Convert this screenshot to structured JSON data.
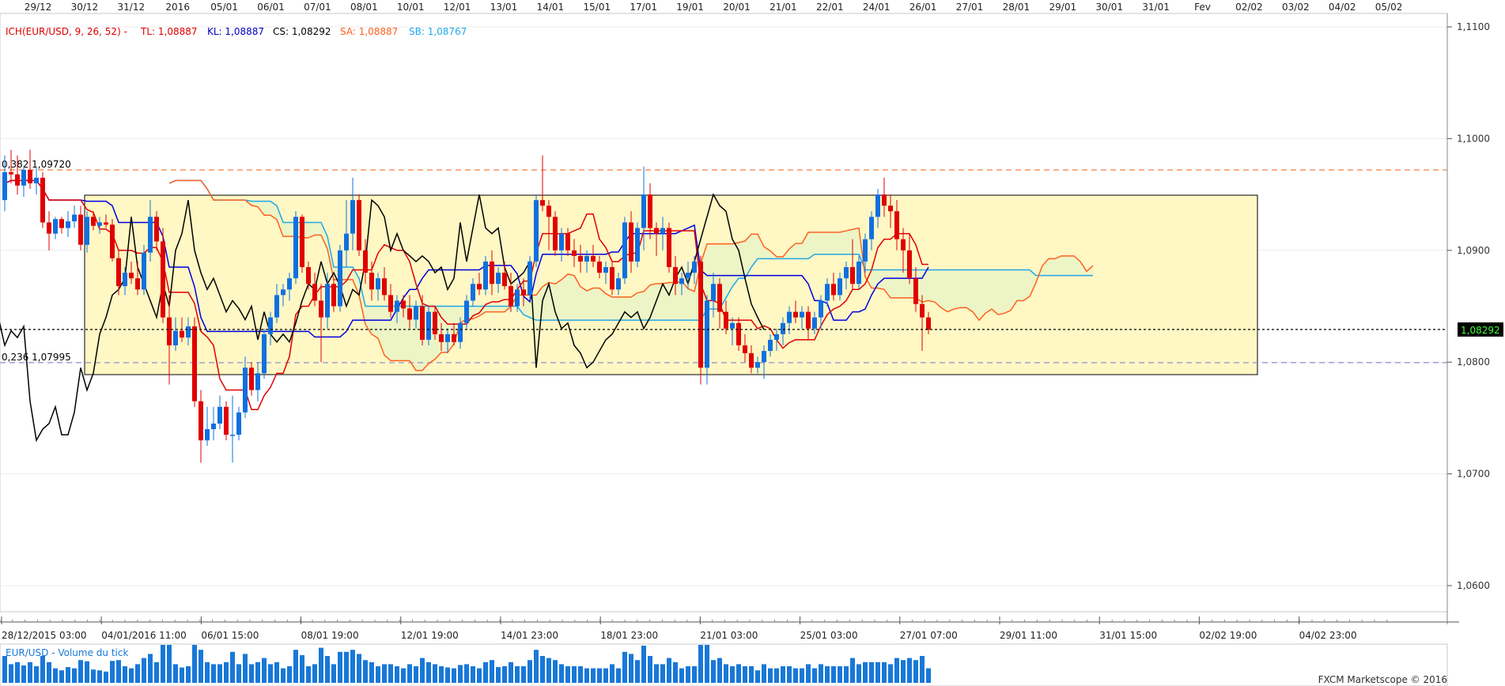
{
  "chart_data": {
    "type": "candlestick",
    "symbol": "EUR/USD",
    "indicator": {
      "legend_title": "ICH(EUR/USD, 9, 26, 52) -",
      "tl_label": "TL: 1,08887",
      "kl_label": "KL: 1,08887",
      "cs_label": "CS: 1,08292",
      "sa_label": "SA: 1,08887",
      "sb_label": "SB: 1,08767"
    },
    "current_price": "1,08292",
    "current_value": 1.08292,
    "ylim": [
      1.0555,
      1.1125
    ],
    "price_ticks": [
      {
        "label": "1,1100",
        "value": 1.11
      },
      {
        "label": "1,1000",
        "value": 1.1
      },
      {
        "label": "1,0900",
        "value": 1.09
      },
      {
        "label": "1,0800",
        "value": 1.08
      },
      {
        "label": "1,0700",
        "value": 1.07
      },
      {
        "label": "1,0600",
        "value": 1.06
      }
    ],
    "top_date_labels": [
      "29/12",
      "30/12",
      "31/12",
      "2016",
      "05/01",
      "06/01",
      "07/01",
      "08/01",
      "10/01",
      "12/01",
      "13/01",
      "14/01",
      "15/01",
      "17/01",
      "19/01",
      "20/01",
      "21/01",
      "22/01",
      "24/01",
      "26/01",
      "27/01",
      "28/01",
      "29/01",
      "30/01",
      "31/01",
      "Fev",
      "02/02",
      "03/02",
      "04/02",
      "05/02"
    ],
    "bottom_date_labels": [
      "28/12/2015 03:00",
      "04/01/2016 11:00",
      "06/01 15:00",
      "08/01 19:00",
      "12/01 19:00",
      "14/01 23:00",
      "18/01 23:00",
      "21/01 03:00",
      "25/01 03:00",
      "27/01 07:00",
      "29/01 11:00",
      "31/01 15:00",
      "02/02 19:00",
      "04/02 23:00"
    ],
    "fib_levels": [
      {
        "label": "0,382 1,09720",
        "value": 1.0972,
        "color": "#f08040"
      },
      {
        "label": "0,236 1,07995",
        "value": 1.07995,
        "color": "#9090d0"
      }
    ],
    "candles": [
      [
        1.0945,
        1.0985,
        1.0935,
        1.097
      ],
      [
        1.097,
        1.099,
        1.096,
        1.0968
      ],
      [
        1.0968,
        1.0985,
        1.095,
        1.0958
      ],
      [
        1.0958,
        1.0975,
        1.0948,
        1.0972
      ],
      [
        1.0972,
        1.099,
        1.0955,
        1.096
      ],
      [
        1.096,
        1.0975,
        1.095,
        1.0965
      ],
      [
        1.0965,
        1.097,
        1.092,
        1.0925
      ],
      [
        1.0925,
        1.0935,
        1.09,
        1.0915
      ],
      [
        1.0915,
        1.093,
        1.091,
        1.0928
      ],
      [
        1.0928,
        1.093,
        1.0915,
        1.092
      ],
      [
        1.092,
        1.0935,
        1.0912,
        1.0926
      ],
      [
        1.0926,
        1.094,
        1.092,
        1.0932
      ],
      [
        1.0932,
        1.094,
        1.09,
        1.0905
      ],
      [
        1.0905,
        1.0935,
        1.0898,
        1.093
      ],
      [
        1.093,
        1.0935,
        1.0918,
        1.0922
      ],
      [
        1.0922,
        1.093,
        1.0915,
        1.0925
      ],
      [
        1.0925,
        1.0932,
        1.092,
        1.0923
      ],
      [
        1.0923,
        1.0928,
        1.089,
        1.0893
      ],
      [
        1.0893,
        1.09,
        1.086,
        1.0868
      ],
      [
        1.0868,
        1.0885,
        1.086,
        1.088
      ],
      [
        1.088,
        1.089,
        1.087,
        1.0875
      ],
      [
        1.0875,
        1.089,
        1.086,
        1.0865
      ],
      [
        1.0865,
        1.0905,
        1.086,
        1.0898
      ],
      [
        1.0898,
        1.0945,
        1.089,
        1.093
      ],
      [
        1.093,
        1.0935,
        1.09,
        1.0908
      ],
      [
        1.0908,
        1.092,
        1.0835,
        1.084
      ],
      [
        1.084,
        1.086,
        1.078,
        1.0815
      ],
      [
        1.0815,
        1.084,
        1.081,
        1.0828
      ],
      [
        1.0828,
        1.084,
        1.0818,
        1.0822
      ],
      [
        1.0822,
        1.084,
        1.0815,
        1.0832
      ],
      [
        1.0832,
        1.084,
        1.076,
        1.0765
      ],
      [
        1.0765,
        1.0775,
        1.071,
        1.073
      ],
      [
        1.073,
        1.076,
        1.0725,
        1.074
      ],
      [
        1.074,
        1.076,
        1.073,
        1.0745
      ],
      [
        1.0745,
        1.077,
        1.074,
        1.076
      ],
      [
        1.076,
        1.0765,
        1.073,
        1.0735
      ],
      [
        1.0735,
        1.077,
        1.071,
        1.0735
      ],
      [
        1.0735,
        1.076,
        1.073,
        1.0755
      ],
      [
        1.0755,
        1.0805,
        1.075,
        1.0795
      ],
      [
        1.0795,
        1.08,
        1.077,
        1.0775
      ],
      [
        1.0775,
        1.08,
        1.0765,
        1.079
      ],
      [
        1.079,
        1.083,
        1.0785,
        1.0825
      ],
      [
        1.0825,
        1.0845,
        1.0815,
        1.084
      ],
      [
        1.084,
        1.087,
        1.0835,
        1.086
      ],
      [
        1.086,
        1.087,
        1.085,
        1.0865
      ],
      [
        1.0865,
        1.088,
        1.0855,
        1.0875
      ],
      [
        1.0875,
        1.0935,
        1.087,
        1.093
      ],
      [
        1.093,
        1.0932,
        1.088,
        1.0885
      ],
      [
        1.0885,
        1.089,
        1.0865,
        1.087
      ],
      [
        1.087,
        1.088,
        1.085,
        1.0855
      ],
      [
        1.0855,
        1.087,
        1.08,
        1.084
      ],
      [
        1.084,
        1.088,
        1.083,
        1.087
      ],
      [
        1.087,
        1.0875,
        1.0845,
        1.085
      ],
      [
        1.085,
        1.0905,
        1.0845,
        1.09
      ],
      [
        1.09,
        1.0945,
        1.0885,
        1.0915
      ],
      [
        1.0915,
        1.0965,
        1.09,
        1.0945
      ],
      [
        1.0945,
        1.095,
        1.0895,
        1.09
      ],
      [
        1.09,
        1.091,
        1.087,
        1.088
      ],
      [
        1.088,
        1.089,
        1.0855,
        1.0865
      ],
      [
        1.0865,
        1.088,
        1.0855,
        1.0875
      ],
      [
        1.0875,
        1.0885,
        1.0855,
        1.086
      ],
      [
        1.086,
        1.087,
        1.084,
        1.0845
      ],
      [
        1.0845,
        1.086,
        1.0835,
        1.0855
      ],
      [
        1.0855,
        1.086,
        1.084,
        1.0848
      ],
      [
        1.0848,
        1.086,
        1.083,
        1.0838
      ],
      [
        1.0838,
        1.0855,
        1.083,
        1.085
      ],
      [
        1.085,
        1.086,
        1.0815,
        1.082
      ],
      [
        1.082,
        1.085,
        1.0815,
        1.0845
      ],
      [
        1.0845,
        1.085,
        1.082,
        1.0825
      ],
      [
        1.0825,
        1.0835,
        1.081,
        1.0818
      ],
      [
        1.0818,
        1.083,
        1.0808,
        1.0825
      ],
      [
        1.0825,
        1.0835,
        1.0815,
        1.0818
      ],
      [
        1.0818,
        1.084,
        1.0812,
        1.0835
      ],
      [
        1.0835,
        1.086,
        1.083,
        1.0855
      ],
      [
        1.0855,
        1.0875,
        1.085,
        1.087
      ],
      [
        1.087,
        1.088,
        1.086,
        1.0865
      ],
      [
        1.0865,
        1.0895,
        1.086,
        1.089
      ],
      [
        1.089,
        1.09,
        1.086,
        1.087
      ],
      [
        1.087,
        1.0885,
        1.0862,
        1.088
      ],
      [
        1.088,
        1.089,
        1.0865,
        1.0868
      ],
      [
        1.0868,
        1.088,
        1.0845,
        1.085
      ],
      [
        1.085,
        1.087,
        1.0845,
        1.0865
      ],
      [
        1.0865,
        1.0875,
        1.085,
        1.086
      ],
      [
        1.086,
        1.0895,
        1.0855,
        1.089
      ],
      [
        1.089,
        1.095,
        1.0885,
        1.0945
      ],
      [
        1.0945,
        1.0985,
        1.0935,
        1.094
      ],
      [
        1.094,
        1.0945,
        1.09,
        1.093
      ],
      [
        1.093,
        1.0935,
        1.0895,
        1.09
      ],
      [
        1.09,
        1.092,
        1.089,
        1.0915
      ],
      [
        1.0915,
        1.092,
        1.0895,
        1.09
      ],
      [
        1.09,
        1.091,
        1.0885,
        1.0895
      ],
      [
        1.0895,
        1.0905,
        1.088,
        1.089
      ],
      [
        1.089,
        1.09,
        1.088,
        1.0895
      ],
      [
        1.0895,
        1.0905,
        1.0885,
        1.089
      ],
      [
        1.089,
        1.0895,
        1.0875,
        1.088
      ],
      [
        1.088,
        1.089,
        1.087,
        1.0885
      ],
      [
        1.0885,
        1.089,
        1.086,
        1.0865
      ],
      [
        1.0865,
        1.088,
        1.086,
        1.0875
      ],
      [
        1.0875,
        1.093,
        1.087,
        1.0925
      ],
      [
        1.0925,
        1.0935,
        1.088,
        1.089
      ],
      [
        1.089,
        1.0925,
        1.0885,
        1.092
      ],
      [
        1.092,
        1.0975,
        1.09,
        1.095
      ],
      [
        1.095,
        1.096,
        1.091,
        1.092
      ],
      [
        1.092,
        1.0925,
        1.0895,
        1.0915
      ],
      [
        1.0915,
        1.093,
        1.09,
        1.092
      ],
      [
        1.092,
        1.0925,
        1.088,
        1.0885
      ],
      [
        1.0885,
        1.0895,
        1.086,
        1.087
      ],
      [
        1.087,
        1.088,
        1.086,
        1.0875
      ],
      [
        1.0875,
        1.089,
        1.0865,
        1.088
      ],
      [
        1.088,
        1.0895,
        1.087,
        1.089
      ],
      [
        1.089,
        1.0895,
        1.078,
        1.0795
      ],
      [
        1.0795,
        1.086,
        1.078,
        1.0855
      ],
      [
        1.0855,
        1.088,
        1.084,
        1.087
      ],
      [
        1.087,
        1.0875,
        1.083,
        1.0845
      ],
      [
        1.0845,
        1.0855,
        1.0825,
        1.083
      ],
      [
        1.083,
        1.084,
        1.0815,
        1.0835
      ],
      [
        1.0835,
        1.084,
        1.081,
        1.0815
      ],
      [
        1.0815,
        1.0825,
        1.08,
        1.0808
      ],
      [
        1.0808,
        1.0815,
        1.079,
        1.0795
      ],
      [
        1.0795,
        1.0805,
        1.079,
        1.08
      ],
      [
        1.08,
        1.0815,
        1.0785,
        1.081
      ],
      [
        1.081,
        1.0825,
        1.0805,
        1.082
      ],
      [
        1.082,
        1.083,
        1.081,
        1.0825
      ],
      [
        1.0825,
        1.084,
        1.0815,
        1.0835
      ],
      [
        1.0835,
        1.085,
        1.0825,
        1.0845
      ],
      [
        1.0845,
        1.0855,
        1.0835,
        1.084
      ],
      [
        1.084,
        1.085,
        1.083,
        1.0845
      ],
      [
        1.0845,
        1.085,
        1.082,
        1.083
      ],
      [
        1.083,
        1.0845,
        1.0825,
        1.084
      ],
      [
        1.084,
        1.086,
        1.083,
        1.0855
      ],
      [
        1.0855,
        1.0875,
        1.085,
        1.087
      ],
      [
        1.087,
        1.088,
        1.0855,
        1.086
      ],
      [
        1.086,
        1.088,
        1.0855,
        1.0875
      ],
      [
        1.0875,
        1.089,
        1.0865,
        1.0885
      ],
      [
        1.0885,
        1.091,
        1.0865,
        1.087
      ],
      [
        1.087,
        1.0895,
        1.0865,
        1.089
      ],
      [
        1.089,
        1.0915,
        1.088,
        1.091
      ],
      [
        1.091,
        1.0935,
        1.09,
        1.093
      ],
      [
        1.093,
        1.0955,
        1.092,
        1.095
      ],
      [
        1.095,
        1.0965,
        1.093,
        1.094
      ],
      [
        1.094,
        1.095,
        1.092,
        1.0935
      ],
      [
        1.0935,
        1.0945,
        1.09,
        1.091
      ],
      [
        1.091,
        1.092,
        1.088,
        1.09
      ],
      [
        1.09,
        1.0915,
        1.087,
        1.0875
      ],
      [
        1.0875,
        1.0885,
        1.0845,
        1.0852
      ],
      [
        1.0852,
        1.086,
        1.081,
        1.084
      ],
      [
        1.084,
        1.0845,
        1.0825,
        1.0829
      ]
    ],
    "ichimoku": {
      "tenkan_color": "#e00000",
      "kijun_color": "#0000e0",
      "chikou_color": "#000000",
      "senkou_a_color": "#ff6020",
      "senkou_b_color": "#20a8e8"
    },
    "volume_title": "EUR/USD - Volume du tick",
    "watermark": "FXCM Marketscope © 2016",
    "highlight_color": "#fff7c4"
  }
}
